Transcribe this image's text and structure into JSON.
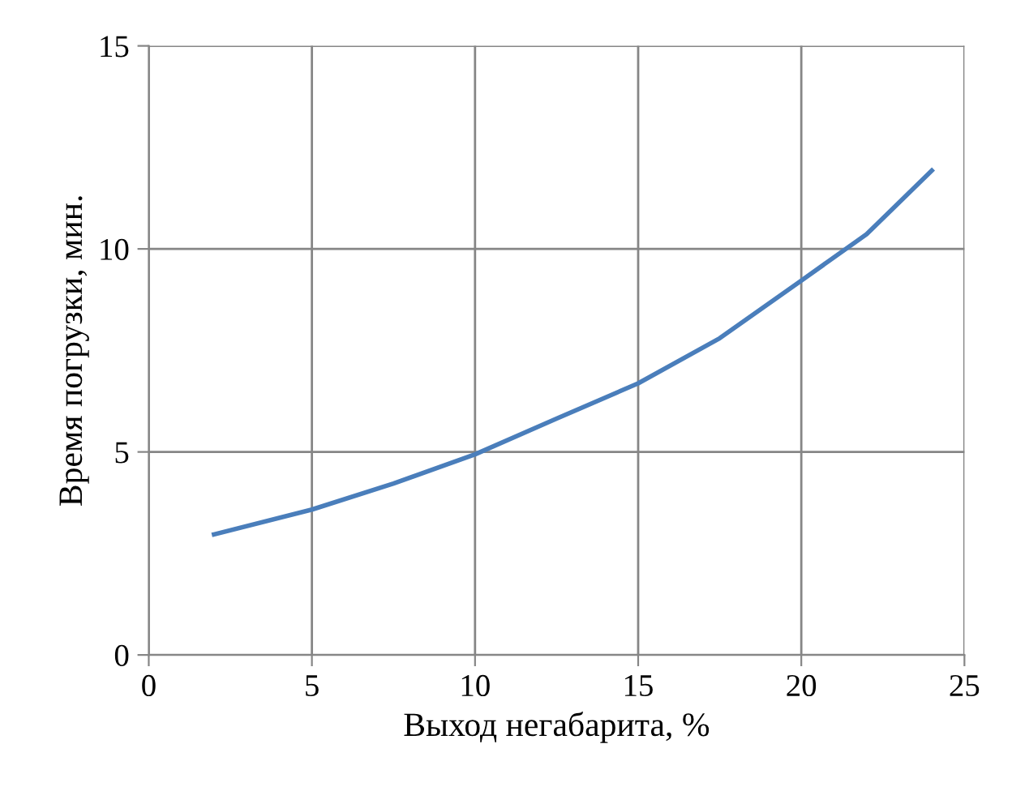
{
  "chart_data": {
    "type": "line",
    "xlabel": "Выход негабарита, %",
    "ylabel": "Время погрузки, мин.",
    "x": [
      2,
      5,
      7.5,
      10,
      12.5,
      15,
      17.5,
      20,
      22,
      24
    ],
    "series": [
      {
        "color": "#4a7ebb",
        "values": [
          2.97,
          3.58,
          4.22,
          4.94,
          5.82,
          6.69,
          7.8,
          9.22,
          10.36,
          11.93
        ]
      }
    ],
    "xlim": [
      0,
      25
    ],
    "xticks": [
      0,
      5,
      10,
      15,
      20,
      25
    ],
    "ylim": [
      0,
      15
    ],
    "yticks": [
      0,
      5,
      10,
      15
    ],
    "grid": true,
    "legend": false,
    "marker": "none",
    "line_style": "solid"
  }
}
